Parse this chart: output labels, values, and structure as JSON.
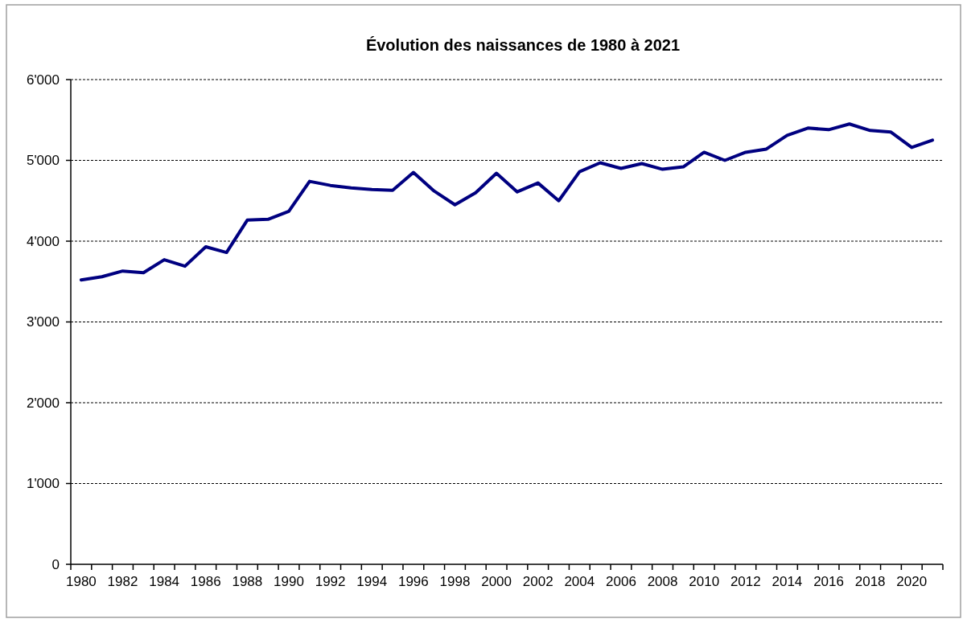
{
  "chart_data": {
    "type": "line",
    "title": "Évolution des naissances de 1980 à 2021",
    "categories": [
      "1980",
      null,
      "1982",
      null,
      "1984",
      null,
      "1986",
      null,
      "1988",
      null,
      "1990",
      null,
      "1992",
      null,
      "1994",
      null,
      "1996",
      null,
      "1998",
      null,
      "2000",
      null,
      "2002",
      null,
      "2004",
      null,
      "2006",
      null,
      "2008",
      null,
      "2010",
      null,
      "2012",
      null,
      "2014",
      null,
      "2016",
      null,
      "2018",
      null,
      "2020",
      null
    ],
    "series": [
      {
        "color": "#000080",
        "values": [
          3520,
          3560,
          3630,
          3610,
          3770,
          3690,
          3930,
          3860,
          4260,
          4270,
          4370,
          4740,
          4690,
          4660,
          4640,
          4630,
          4850,
          4620,
          4450,
          4600,
          4840,
          4610,
          4720,
          4500,
          4860,
          4970,
          4900,
          4960,
          4890,
          4920,
          5100,
          5000,
          5100,
          5140,
          5310,
          5400,
          5380,
          5450,
          5370,
          5350,
          5160,
          5250
        ]
      }
    ],
    "ylim": [
      0,
      6000
    ],
    "yticks": [
      0,
      {
        "value": 1000,
        "label": "1'000"
      },
      {
        "value": 2000,
        "label": "2'000"
      },
      {
        "value": 3000,
        "label": "3'000"
      },
      {
        "value": 4000,
        "label": "4'000"
      },
      {
        "value": 5000,
        "label": "5'000"
      },
      {
        "value": 6000,
        "label": "6'000"
      }
    ],
    "grid": "y",
    "marker": "none",
    "line_style": "solid"
  }
}
